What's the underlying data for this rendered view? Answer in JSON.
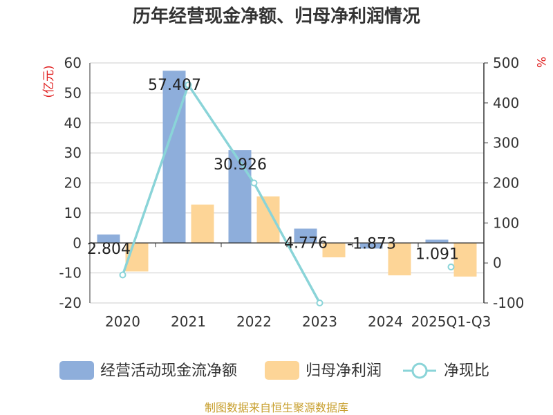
{
  "chart_data": {
    "type": "bar",
    "title": "历年经营现金净额、归母净利润情况",
    "categories": [
      "2020",
      "2021",
      "2022",
      "2023",
      "2024",
      "2025Q1-Q3"
    ],
    "series": [
      {
        "name": "经营活动现金流净额",
        "kind": "bar",
        "axis": "left",
        "color": "#8eaedb",
        "values": [
          2.804,
          57.407,
          30.926,
          4.776,
          -1.873,
          1.091
        ],
        "labels": [
          "2.804",
          "57.407",
          "30.926",
          "4.776",
          "-1.873",
          "1.091"
        ]
      },
      {
        "name": "归母净利润",
        "kind": "bar",
        "axis": "left",
        "color": "#fdd597",
        "values": [
          -9.5,
          12.8,
          15.5,
          -4.8,
          -10.8,
          -11.2
        ]
      },
      {
        "name": "净现比",
        "kind": "line",
        "axis": "right",
        "color": "#8ad4d8",
        "values": [
          -30,
          445,
          200,
          -100,
          null,
          -10
        ]
      }
    ],
    "y_left": {
      "unit": "(亿元)",
      "min": -20,
      "max": 60,
      "ticks": [
        -20,
        -10,
        0,
        10,
        20,
        30,
        40,
        50,
        60
      ]
    },
    "y_right": {
      "unit": "%",
      "min": -100,
      "max": 500,
      "ticks": [
        -100,
        0,
        100,
        200,
        300,
        400,
        500
      ]
    },
    "legend_position": "bottom",
    "grid": true
  },
  "source": "制图数据来自恒生聚源数据库"
}
